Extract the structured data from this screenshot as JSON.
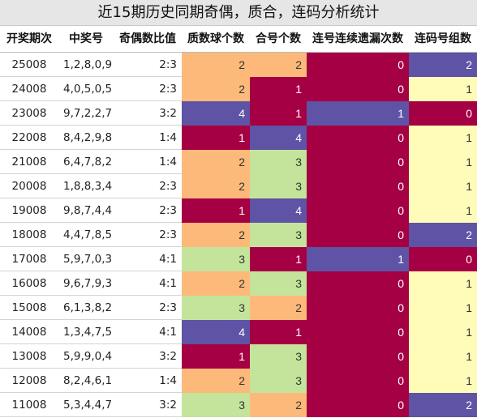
{
  "chart_data": {
    "type": "table",
    "title": "近15期历史同期奇偶，质合，连码分析统计",
    "columns": [
      "开奖期次",
      "中奖号",
      "奇偶数比值",
      "质数球个数",
      "合号个数",
      "连号连续遗漏次数",
      "连码号组数"
    ],
    "rows": [
      [
        "25008",
        "1,2,8,0,9",
        "2:3",
        2,
        2,
        0,
        2
      ],
      [
        "24008",
        "4,0,5,0,5",
        "2:3",
        2,
        1,
        0,
        1
      ],
      [
        "23008",
        "9,7,2,2,7",
        "3:2",
        4,
        1,
        1,
        0
      ],
      [
        "22008",
        "8,4,2,9,8",
        "1:4",
        1,
        4,
        0,
        1
      ],
      [
        "21008",
        "6,4,7,8,2",
        "1:4",
        2,
        3,
        0,
        1
      ],
      [
        "20008",
        "1,8,8,3,4",
        "2:3",
        2,
        3,
        0,
        1
      ],
      [
        "19008",
        "9,8,7,4,4",
        "2:3",
        1,
        4,
        0,
        1
      ],
      [
        "18008",
        "4,4,7,8,5",
        "2:3",
        2,
        3,
        0,
        2
      ],
      [
        "17008",
        "5,9,7,0,3",
        "4:1",
        3,
        1,
        1,
        0
      ],
      [
        "16008",
        "9,6,7,9,3",
        "4:1",
        2,
        3,
        0,
        1
      ],
      [
        "15008",
        "6,1,3,8,2",
        "2:3",
        3,
        2,
        0,
        1
      ],
      [
        "14008",
        "1,3,4,7,5",
        "4:1",
        4,
        1,
        0,
        1
      ],
      [
        "13008",
        "5,9,9,0,4",
        "3:2",
        1,
        3,
        0,
        1
      ],
      [
        "12008",
        "8,2,4,6,1",
        "1:4",
        2,
        3,
        0,
        1
      ],
      [
        "11008",
        "5,3,4,4,7",
        "3:2",
        3,
        2,
        0,
        2
      ]
    ]
  },
  "colors": {
    "c0": "#a50043",
    "c1": "#a50043",
    "c1_light": "#fffbb8",
    "c2": "#fdb97a",
    "c3": "#c4e49b",
    "c4": "#5e53a5",
    "header_bg": "#e6e6e6",
    "text_on_dark": "#ffffff",
    "text_on_light": "#333333"
  }
}
